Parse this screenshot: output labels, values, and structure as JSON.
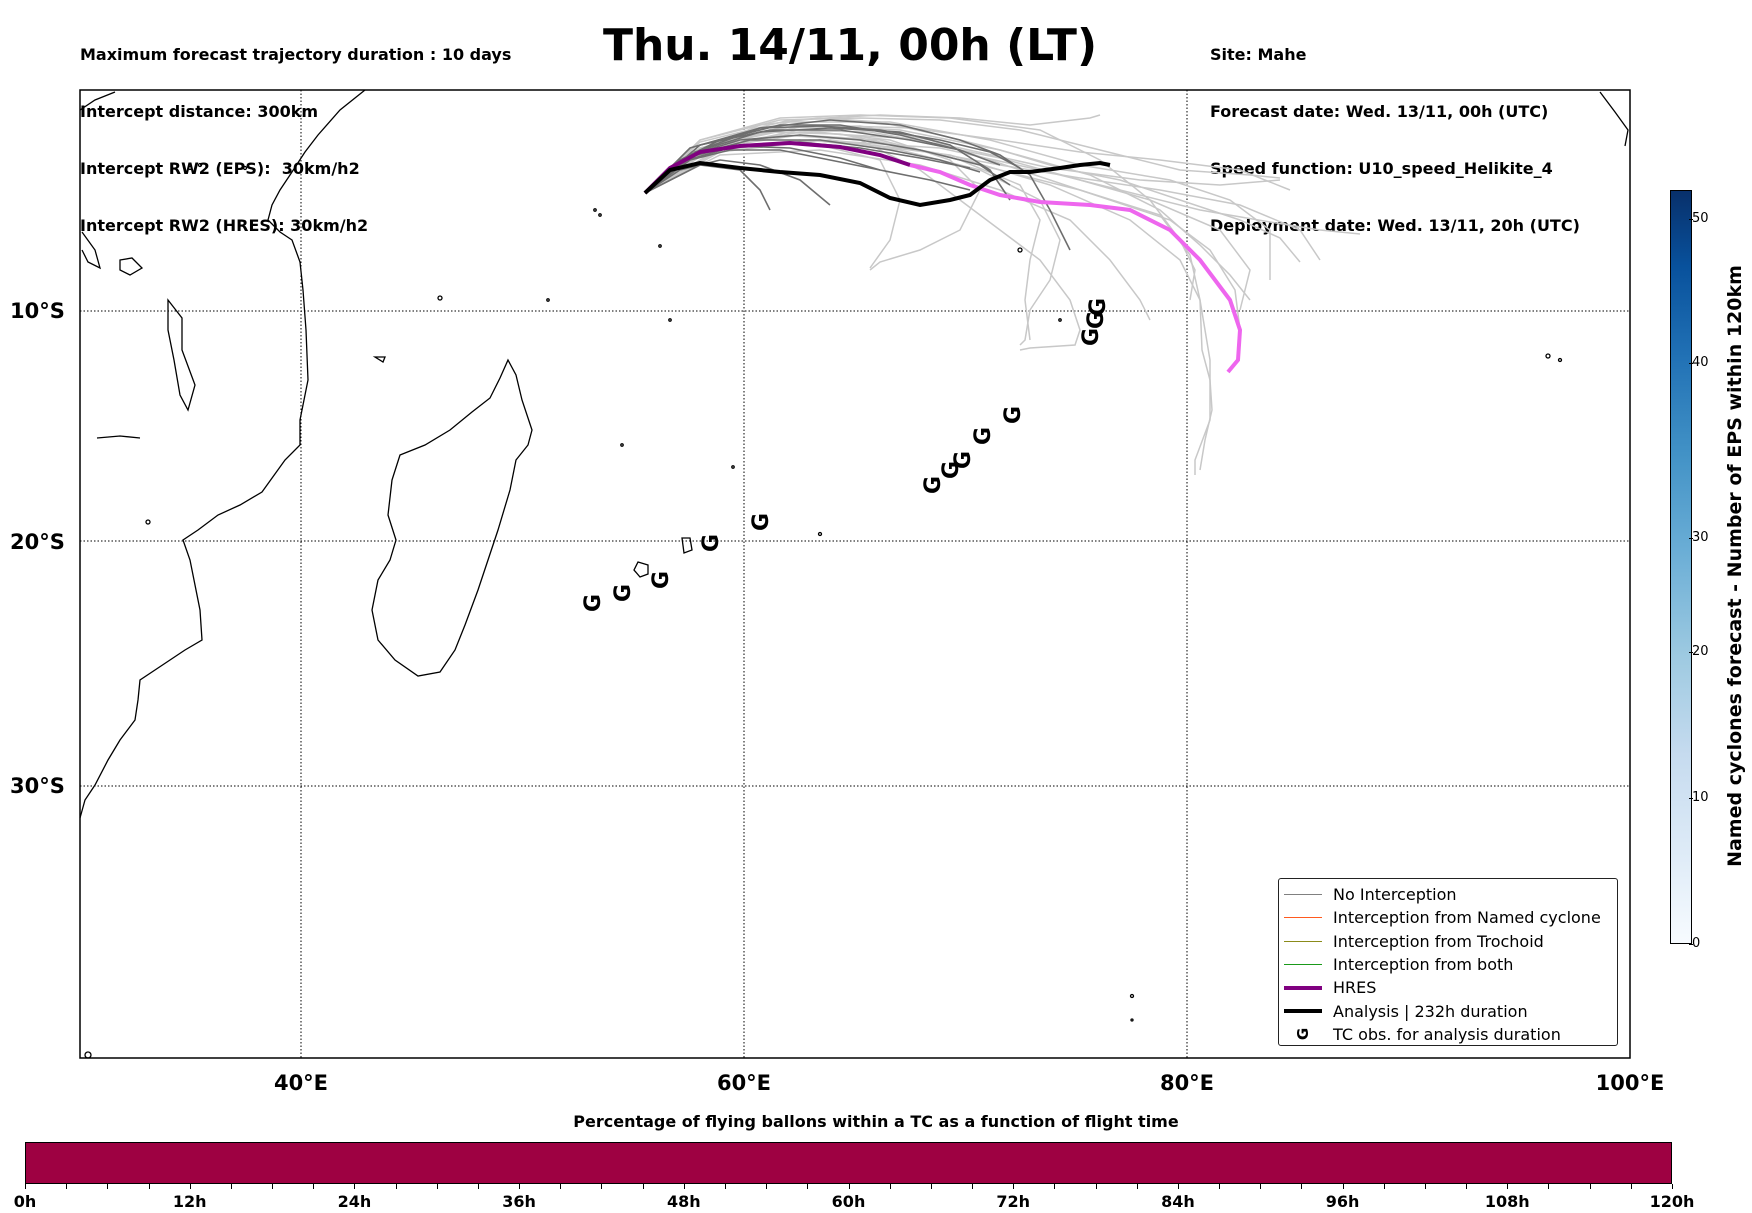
{
  "header": {
    "left_lines": [
      "Maximum forecast trajectory duration : 10 days",
      "Intercept distance: 300km",
      "Intercept RW2 (EPS):  30km/h2",
      "Intercept RW2 (HRES): 30km/h2"
    ],
    "title": "Thu. 14/11, 00h (LT)",
    "right_lines": [
      "Site: Mahe",
      "Forecast date: Wed. 13/11, 00h (UTC)",
      "Speed function: U10_speed_Helikite_4",
      "Deployment date: Wed. 13/11, 20h (UTC)"
    ]
  },
  "map": {
    "lon_range": [
      30,
      100
    ],
    "lat_range": [
      0,
      -44
    ],
    "lat_labels": [
      "10°S",
      "20°S",
      "30°S"
    ],
    "lon_labels": [
      "40°E",
      "60°E",
      "80°E",
      "100°E"
    ]
  },
  "legend": [
    {
      "label": "No Interception",
      "color": "#808080"
    },
    {
      "label": "Interception from Named cyclone",
      "color": "#ff5a1f"
    },
    {
      "label": "Interception from Trochoid",
      "color": "#8b8b1a"
    },
    {
      "label": "Interception from both",
      "color": "#1a9a1a"
    },
    {
      "label": "HRES",
      "color": "#800080"
    },
    {
      "label": "Analysis | 232h duration",
      "color": "#000000"
    },
    {
      "label": "TC obs. for analysis duration",
      "icon": "cyclone-icon"
    }
  ],
  "colorbar_vertical": {
    "label": "Named cyclones forecast - Number of EPS within 120km",
    "ticks": [
      "0",
      "10",
      "20",
      "30",
      "40",
      "50"
    ]
  },
  "colorbar_horizontal": {
    "title": "Percentage of flying ballons within a TC as a function of flight time",
    "ticks": [
      "0h",
      "12h",
      "24h",
      "36h",
      "48h",
      "60h",
      "72h",
      "84h",
      "96h",
      "108h",
      "120h"
    ],
    "color": "#9e0142"
  }
}
